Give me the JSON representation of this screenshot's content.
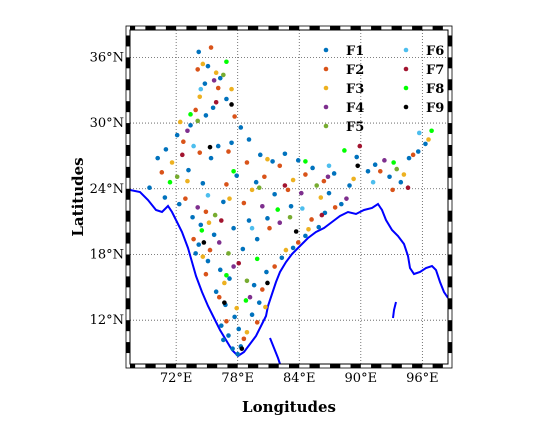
{
  "chart_data": {
    "type": "scatter",
    "title": "",
    "xlabel": "Longitudes",
    "ylabel": "Latitudes",
    "xlim": [
      67.5,
      98.5
    ],
    "ylim": [
      8.0,
      38.5
    ],
    "grid": true,
    "legend_placement": "top-right",
    "x_ticks": [
      {
        "value": 72,
        "label": "72°E"
      },
      {
        "value": 78,
        "label": "78°E"
      },
      {
        "value": 84,
        "label": "84°E"
      },
      {
        "value": 90,
        "label": "90°E"
      },
      {
        "value": 96,
        "label": "96°E"
      }
    ],
    "y_ticks": [
      {
        "value": 12,
        "label": "12°N"
      },
      {
        "value": 18,
        "label": "18°N"
      },
      {
        "value": 24,
        "label": "24°N"
      },
      {
        "value": 30,
        "label": "30°N"
      },
      {
        "value": 36,
        "label": "36°N"
      }
    ],
    "series": [
      {
        "name": "F1",
        "color": "#0072BD",
        "points": [
          [
            74.2,
            36.5
          ],
          [
            75.1,
            35.2
          ],
          [
            76.3,
            34.1
          ],
          [
            74.8,
            33.6
          ],
          [
            76.9,
            32.2
          ],
          [
            75.6,
            31.4
          ],
          [
            74.9,
            30.7
          ],
          [
            73.4,
            29.8
          ],
          [
            72.1,
            28.9
          ],
          [
            71.0,
            27.6
          ],
          [
            70.2,
            26.8
          ],
          [
            69.4,
            24.1
          ],
          [
            70.9,
            23.2
          ],
          [
            72.3,
            22.6
          ],
          [
            73.6,
            21.4
          ],
          [
            74.4,
            20.7
          ],
          [
            75.7,
            19.8
          ],
          [
            74.2,
            18.9
          ],
          [
            73.9,
            18.1
          ],
          [
            75.1,
            17.4
          ],
          [
            76.3,
            16.6
          ],
          [
            77.2,
            15.8
          ],
          [
            75.9,
            14.6
          ],
          [
            76.8,
            13.4
          ],
          [
            77.7,
            12.3
          ],
          [
            76.4,
            11.5
          ],
          [
            77.1,
            10.6
          ],
          [
            78.3,
            9.6
          ],
          [
            78.1,
            11.2
          ],
          [
            79.4,
            12.5
          ],
          [
            80.1,
            13.6
          ],
          [
            79.6,
            15.2
          ],
          [
            80.8,
            16.4
          ],
          [
            82.3,
            17.7
          ],
          [
            83.4,
            18.6
          ],
          [
            84.6,
            19.7
          ],
          [
            85.9,
            20.5
          ],
          [
            86.5,
            21.8
          ],
          [
            88.1,
            22.6
          ],
          [
            88.9,
            24.3
          ],
          [
            87.4,
            25.4
          ],
          [
            85.3,
            25.9
          ],
          [
            83.9,
            26.6
          ],
          [
            82.6,
            27.2
          ],
          [
            81.4,
            26.5
          ],
          [
            80.2,
            27.1
          ],
          [
            79.1,
            28.5
          ],
          [
            78.3,
            29.6
          ],
          [
            77.4,
            28.2
          ],
          [
            76.1,
            27.9
          ],
          [
            75.4,
            26.8
          ],
          [
            77.9,
            25.2
          ],
          [
            79.8,
            24.6
          ],
          [
            81.6,
            23.5
          ],
          [
            83.2,
            22.4
          ],
          [
            80.9,
            21.3
          ],
          [
            79.1,
            21.1
          ],
          [
            77.6,
            20.4
          ],
          [
            78.5,
            18.5
          ],
          [
            76.6,
            22.8
          ],
          [
            74.6,
            24.5
          ],
          [
            73.2,
            25.7
          ],
          [
            91.4,
            26.2
          ],
          [
            92.8,
            25.1
          ],
          [
            93.9,
            24.6
          ],
          [
            94.7,
            26.8
          ],
          [
            95.6,
            27.4
          ],
          [
            96.3,
            28.1
          ],
          [
            89.6,
            26.9
          ],
          [
            90.7,
            25.6
          ],
          [
            78.0,
            8.9
          ],
          [
            77.5,
            9.4
          ],
          [
            76.6,
            10.2
          ],
          [
            79.9,
            19.4
          ],
          [
            86.9,
            23.6
          ]
        ]
      },
      {
        "name": "F2",
        "color": "#D95319",
        "points": [
          [
            75.4,
            36.9
          ],
          [
            74.1,
            34.9
          ],
          [
            76.1,
            33.2
          ],
          [
            73.9,
            31.2
          ],
          [
            72.7,
            28.3
          ],
          [
            70.6,
            25.5
          ],
          [
            72.9,
            23.1
          ],
          [
            74.9,
            21.9
          ],
          [
            73.7,
            19.4
          ],
          [
            75.3,
            18.4
          ],
          [
            74.9,
            16.2
          ],
          [
            76.2,
            14.1
          ],
          [
            76.9,
            11.9
          ],
          [
            78.6,
            10.3
          ],
          [
            79.9,
            11.8
          ],
          [
            80.4,
            14.8
          ],
          [
            81.6,
            16.9
          ],
          [
            83.9,
            19.1
          ],
          [
            85.2,
            21.2
          ],
          [
            87.5,
            22.3
          ],
          [
            86.4,
            24.7
          ],
          [
            84.6,
            25.3
          ],
          [
            82.1,
            26.1
          ],
          [
            80.6,
            25.1
          ],
          [
            78.9,
            26.4
          ],
          [
            77.1,
            27.4
          ],
          [
            76.9,
            24.4
          ],
          [
            78.6,
            22.7
          ],
          [
            81.1,
            20.4
          ],
          [
            82.9,
            23.9
          ],
          [
            91.9,
            25.6
          ],
          [
            93.1,
            23.9
          ],
          [
            95.1,
            27.1
          ],
          [
            77.7,
            30.6
          ],
          [
            74.3,
            27.3
          ]
        ]
      },
      {
        "name": "F3",
        "color": "#EDB120",
        "points": [
          [
            74.6,
            35.4
          ],
          [
            75.9,
            34.6
          ],
          [
            77.4,
            33.1
          ],
          [
            74.3,
            32.4
          ],
          [
            72.4,
            30.1
          ],
          [
            71.6,
            26.4
          ],
          [
            73.1,
            24.7
          ],
          [
            75.2,
            20.9
          ],
          [
            74.6,
            17.8
          ],
          [
            76.7,
            15.4
          ],
          [
            77.9,
            13.1
          ],
          [
            78.9,
            10.9
          ],
          [
            80.7,
            13.2
          ],
          [
            82.7,
            18.4
          ],
          [
            84.9,
            20.3
          ],
          [
            86.1,
            23.2
          ],
          [
            83.4,
            24.8
          ],
          [
            80.9,
            26.7
          ],
          [
            79.4,
            23.9
          ],
          [
            77.2,
            23.1
          ],
          [
            89.3,
            24.9
          ],
          [
            94.2,
            25.3
          ],
          [
            96.6,
            28.5
          ]
        ]
      },
      {
        "name": "F4",
        "color": "#7E2F8E",
        "points": [
          [
            75.7,
            33.9
          ],
          [
            73.1,
            29.3
          ],
          [
            74.1,
            22.3
          ],
          [
            76.2,
            19.1
          ],
          [
            77.6,
            16.9
          ],
          [
            79.2,
            14.1
          ],
          [
            82.1,
            20.9
          ],
          [
            84.2,
            23.6
          ],
          [
            86.8,
            25.1
          ],
          [
            88.6,
            23.1
          ],
          [
            80.4,
            22.4
          ],
          [
            92.3,
            26.6
          ]
        ]
      },
      {
        "name": "F5",
        "color": "#77AC30",
        "points": [
          [
            76.6,
            34.4
          ],
          [
            74.1,
            30.2
          ],
          [
            72.1,
            25.1
          ],
          [
            75.8,
            21.6
          ],
          [
            77.1,
            18.1
          ],
          [
            78.9,
            15.6
          ],
          [
            83.1,
            21.4
          ],
          [
            85.7,
            24.3
          ],
          [
            80.1,
            24.1
          ],
          [
            93.5,
            25.8
          ]
        ]
      },
      {
        "name": "F6",
        "color": "#4DBEEE",
        "points": [
          [
            74.4,
            33.1
          ],
          [
            73.7,
            27.9
          ],
          [
            75.1,
            23.4
          ],
          [
            79.4,
            20.4
          ],
          [
            84.3,
            22.2
          ],
          [
            86.9,
            26.1
          ],
          [
            95.7,
            29.1
          ],
          [
            91.2,
            24.6
          ]
        ]
      },
      {
        "name": "F7",
        "color": "#A2142F",
        "points": [
          [
            75.9,
            31.9
          ],
          [
            72.6,
            27.1
          ],
          [
            76.4,
            21.1
          ],
          [
            78.1,
            17.2
          ],
          [
            82.6,
            24.3
          ],
          [
            86.2,
            21.6
          ],
          [
            89.9,
            27.9
          ],
          [
            94.6,
            24.1
          ]
        ]
      },
      {
        "name": "F8",
        "color": "#00FF00",
        "points": [
          [
            76.9,
            35.6
          ],
          [
            73.4,
            30.8
          ],
          [
            71.4,
            24.6
          ],
          [
            74.5,
            20.2
          ],
          [
            76.9,
            16.1
          ],
          [
            78.8,
            13.8
          ],
          [
            79.9,
            17.6
          ],
          [
            81.9,
            22.1
          ],
          [
            77.6,
            25.6
          ],
          [
            84.6,
            26.5
          ],
          [
            88.4,
            27.5
          ],
          [
            93.2,
            26.4
          ],
          [
            96.9,
            29.3
          ]
        ]
      },
      {
        "name": "F9",
        "color": "#000000",
        "points": [
          [
            77.4,
            31.7
          ],
          [
            75.3,
            27.8
          ],
          [
            74.7,
            19.1
          ],
          [
            76.7,
            13.6
          ],
          [
            80.9,
            15.4
          ],
          [
            83.7,
            20.1
          ],
          [
            89.7,
            26.1
          ],
          [
            78.4,
            9.4
          ]
        ]
      }
    ]
  }
}
